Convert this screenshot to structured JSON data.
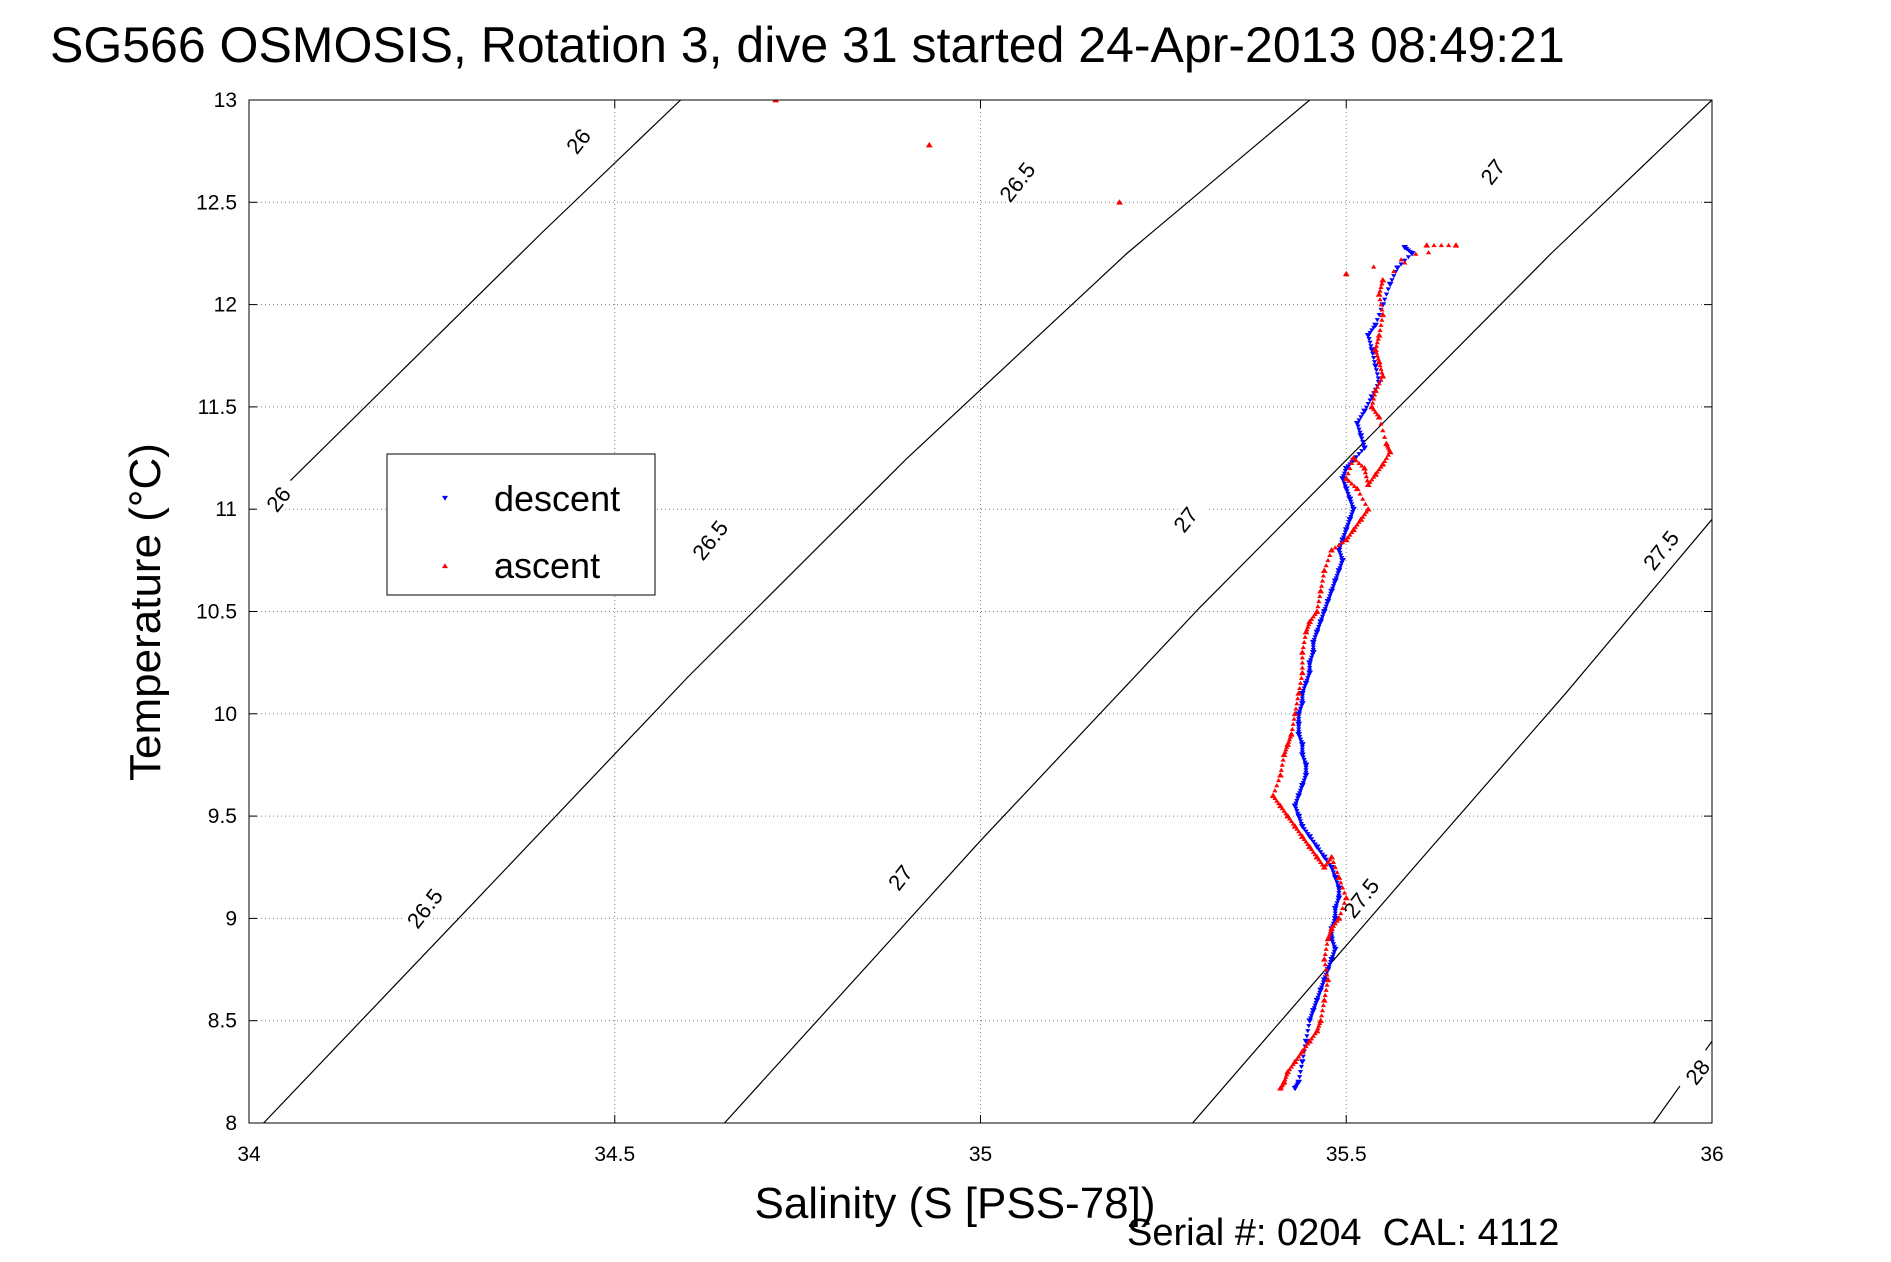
{
  "chart_data": {
    "type": "scatter",
    "title": "SG566 OSMOSIS, Rotation 3, dive 31 started 24-Apr-2013 08:49:21",
    "xlabel": "Salinity (S [PSS-78])",
    "ylabel": "Temperature (°C)",
    "xlim": [
      34,
      36
    ],
    "ylim": [
      8,
      13
    ],
    "x_ticks": [
      "34",
      "34.5",
      "35",
      "35.5",
      "36"
    ],
    "y_ticks": [
      "8",
      "8.5",
      "9",
      "9.5",
      "10",
      "10.5",
      "11",
      "11.5",
      "12",
      "12.5",
      "13"
    ],
    "grid": true,
    "legend_position": "left-center",
    "footer": "Serial #: 0204  CAL: 4112",
    "colors": {
      "descent": "#0000ff",
      "ascent": "#ff0000",
      "contour": "#000000",
      "grid": "#808080"
    },
    "density_contours": [
      {
        "label": "26",
        "points": [
          [
            34.017,
            11.0
          ],
          [
            34.4,
            12.35
          ],
          [
            34.59,
            13.0
          ]
        ]
      },
      {
        "label": "26.5",
        "points": [
          [
            34.02,
            8.0
          ],
          [
            34.3,
            9.05
          ],
          [
            34.6,
            10.18
          ],
          [
            34.9,
            11.25
          ],
          [
            35.2,
            12.25
          ],
          [
            35.45,
            13.0
          ]
        ]
      },
      {
        "label": "27",
        "points": [
          [
            34.65,
            8.0
          ],
          [
            35.0,
            9.38
          ],
          [
            35.3,
            10.52
          ],
          [
            35.6,
            11.6
          ],
          [
            35.78,
            12.25
          ],
          [
            36.0,
            13.0
          ]
        ]
      },
      {
        "label": "27.5",
        "points": [
          [
            35.29,
            8.0
          ],
          [
            35.6,
            9.28
          ],
          [
            35.8,
            10.1
          ],
          [
            36.0,
            10.95
          ]
        ]
      },
      {
        "label": "28",
        "points": [
          [
            35.92,
            8.0
          ],
          [
            36.0,
            8.4
          ]
        ]
      }
    ],
    "contour_labels": [
      {
        "text": "26",
        "x": 34.45,
        "y": 12.8
      },
      {
        "text": "26",
        "x": 34.04,
        "y": 11.05
      },
      {
        "text": "26.5",
        "x": 35.05,
        "y": 12.6
      },
      {
        "text": "26.5",
        "x": 34.63,
        "y": 10.85
      },
      {
        "text": "26.5",
        "x": 34.24,
        "y": 9.05
      },
      {
        "text": "27",
        "x": 35.7,
        "y": 12.65
      },
      {
        "text": "27",
        "x": 35.28,
        "y": 10.95
      },
      {
        "text": "27",
        "x": 34.89,
        "y": 9.2
      },
      {
        "text": "27.5",
        "x": 35.93,
        "y": 10.8
      },
      {
        "text": "27.5",
        "x": 35.52,
        "y": 9.1
      },
      {
        "text": "28",
        "x": 35.98,
        "y": 8.25
      }
    ],
    "series": [
      {
        "name": "descent",
        "marker": "triangle-down",
        "x": [
          35.58,
          35.59,
          35.57,
          35.56,
          35.55,
          35.54,
          35.53,
          35.535,
          35.54,
          35.545,
          35.535,
          35.525,
          35.515,
          35.52,
          35.525,
          35.51,
          35.5,
          35.495,
          35.5,
          35.505,
          35.51,
          35.505,
          35.5,
          35.495,
          35.49,
          35.495,
          35.49,
          35.485,
          35.48,
          35.475,
          35.47,
          35.465,
          35.46,
          35.455,
          35.455,
          35.45,
          35.45,
          35.445,
          35.44,
          35.44,
          35.435,
          35.435,
          35.435,
          35.44,
          35.44,
          35.445,
          35.445,
          35.44,
          35.435,
          35.43,
          35.435,
          35.44,
          35.45,
          35.46,
          35.47,
          35.48,
          35.485,
          35.49,
          35.49,
          35.485,
          35.485,
          35.48,
          35.48,
          35.485,
          35.48,
          35.475,
          35.47,
          35.465,
          35.46,
          35.455,
          35.45,
          35.445,
          35.44,
          35.435,
          35.43
        ],
        "y": [
          12.28,
          12.25,
          12.18,
          12.1,
          12.0,
          11.9,
          11.85,
          11.78,
          11.7,
          11.62,
          11.55,
          11.48,
          11.42,
          11.36,
          11.3,
          11.24,
          11.2,
          11.15,
          11.1,
          11.05,
          11.0,
          10.95,
          10.9,
          10.85,
          10.8,
          10.75,
          10.7,
          10.65,
          10.6,
          10.55,
          10.5,
          10.45,
          10.4,
          10.35,
          10.3,
          10.25,
          10.2,
          10.15,
          10.1,
          10.05,
          10.0,
          9.95,
          9.9,
          9.85,
          9.8,
          9.75,
          9.7,
          9.65,
          9.6,
          9.55,
          9.5,
          9.45,
          9.4,
          9.35,
          9.3,
          9.25,
          9.2,
          9.15,
          9.1,
          9.05,
          9.0,
          8.95,
          8.9,
          8.85,
          8.8,
          8.75,
          8.7,
          8.65,
          8.6,
          8.55,
          8.5,
          8.4,
          8.3,
          8.2,
          8.17
        ]
      },
      {
        "name": "ascent",
        "marker": "triangle-up",
        "x": [
          34.72,
          34.93,
          35.19,
          35.5,
          35.65,
          35.61,
          35.55,
          35.545,
          35.55,
          35.545,
          35.54,
          35.545,
          35.55,
          35.54,
          35.535,
          35.545,
          35.555,
          35.56,
          35.55,
          35.54,
          35.53,
          35.525,
          35.51,
          35.5,
          35.515,
          35.53,
          35.52,
          35.51,
          35.5,
          35.48,
          35.47,
          35.465,
          35.46,
          35.45,
          35.445,
          35.44,
          35.44,
          35.435,
          35.43,
          35.425,
          35.42,
          35.415,
          35.41,
          35.4,
          35.41,
          35.42,
          35.43,
          35.44,
          35.45,
          35.46,
          35.47,
          35.48,
          35.49,
          35.5,
          35.49,
          35.48,
          35.475,
          35.47,
          35.475,
          35.47,
          35.465,
          35.46,
          35.45,
          35.44,
          35.43,
          35.42,
          35.415,
          35.41
        ],
        "y": [
          13.0,
          12.78,
          12.5,
          12.15,
          12.29,
          12.29,
          12.12,
          12.05,
          11.95,
          11.85,
          11.78,
          11.72,
          11.65,
          11.58,
          11.5,
          11.45,
          11.32,
          11.28,
          11.22,
          11.17,
          11.12,
          11.2,
          11.25,
          11.15,
          11.1,
          11.0,
          10.95,
          10.9,
          10.85,
          10.8,
          10.7,
          10.6,
          10.5,
          10.45,
          10.4,
          10.3,
          10.2,
          10.1,
          10.0,
          9.9,
          9.85,
          9.8,
          9.7,
          9.6,
          9.55,
          9.5,
          9.45,
          9.4,
          9.35,
          9.3,
          9.25,
          9.3,
          9.2,
          9.1,
          9.0,
          8.95,
          8.9,
          8.8,
          8.7,
          8.6,
          8.5,
          8.45,
          8.4,
          8.35,
          8.3,
          8.25,
          8.2,
          8.17
        ]
      }
    ]
  }
}
